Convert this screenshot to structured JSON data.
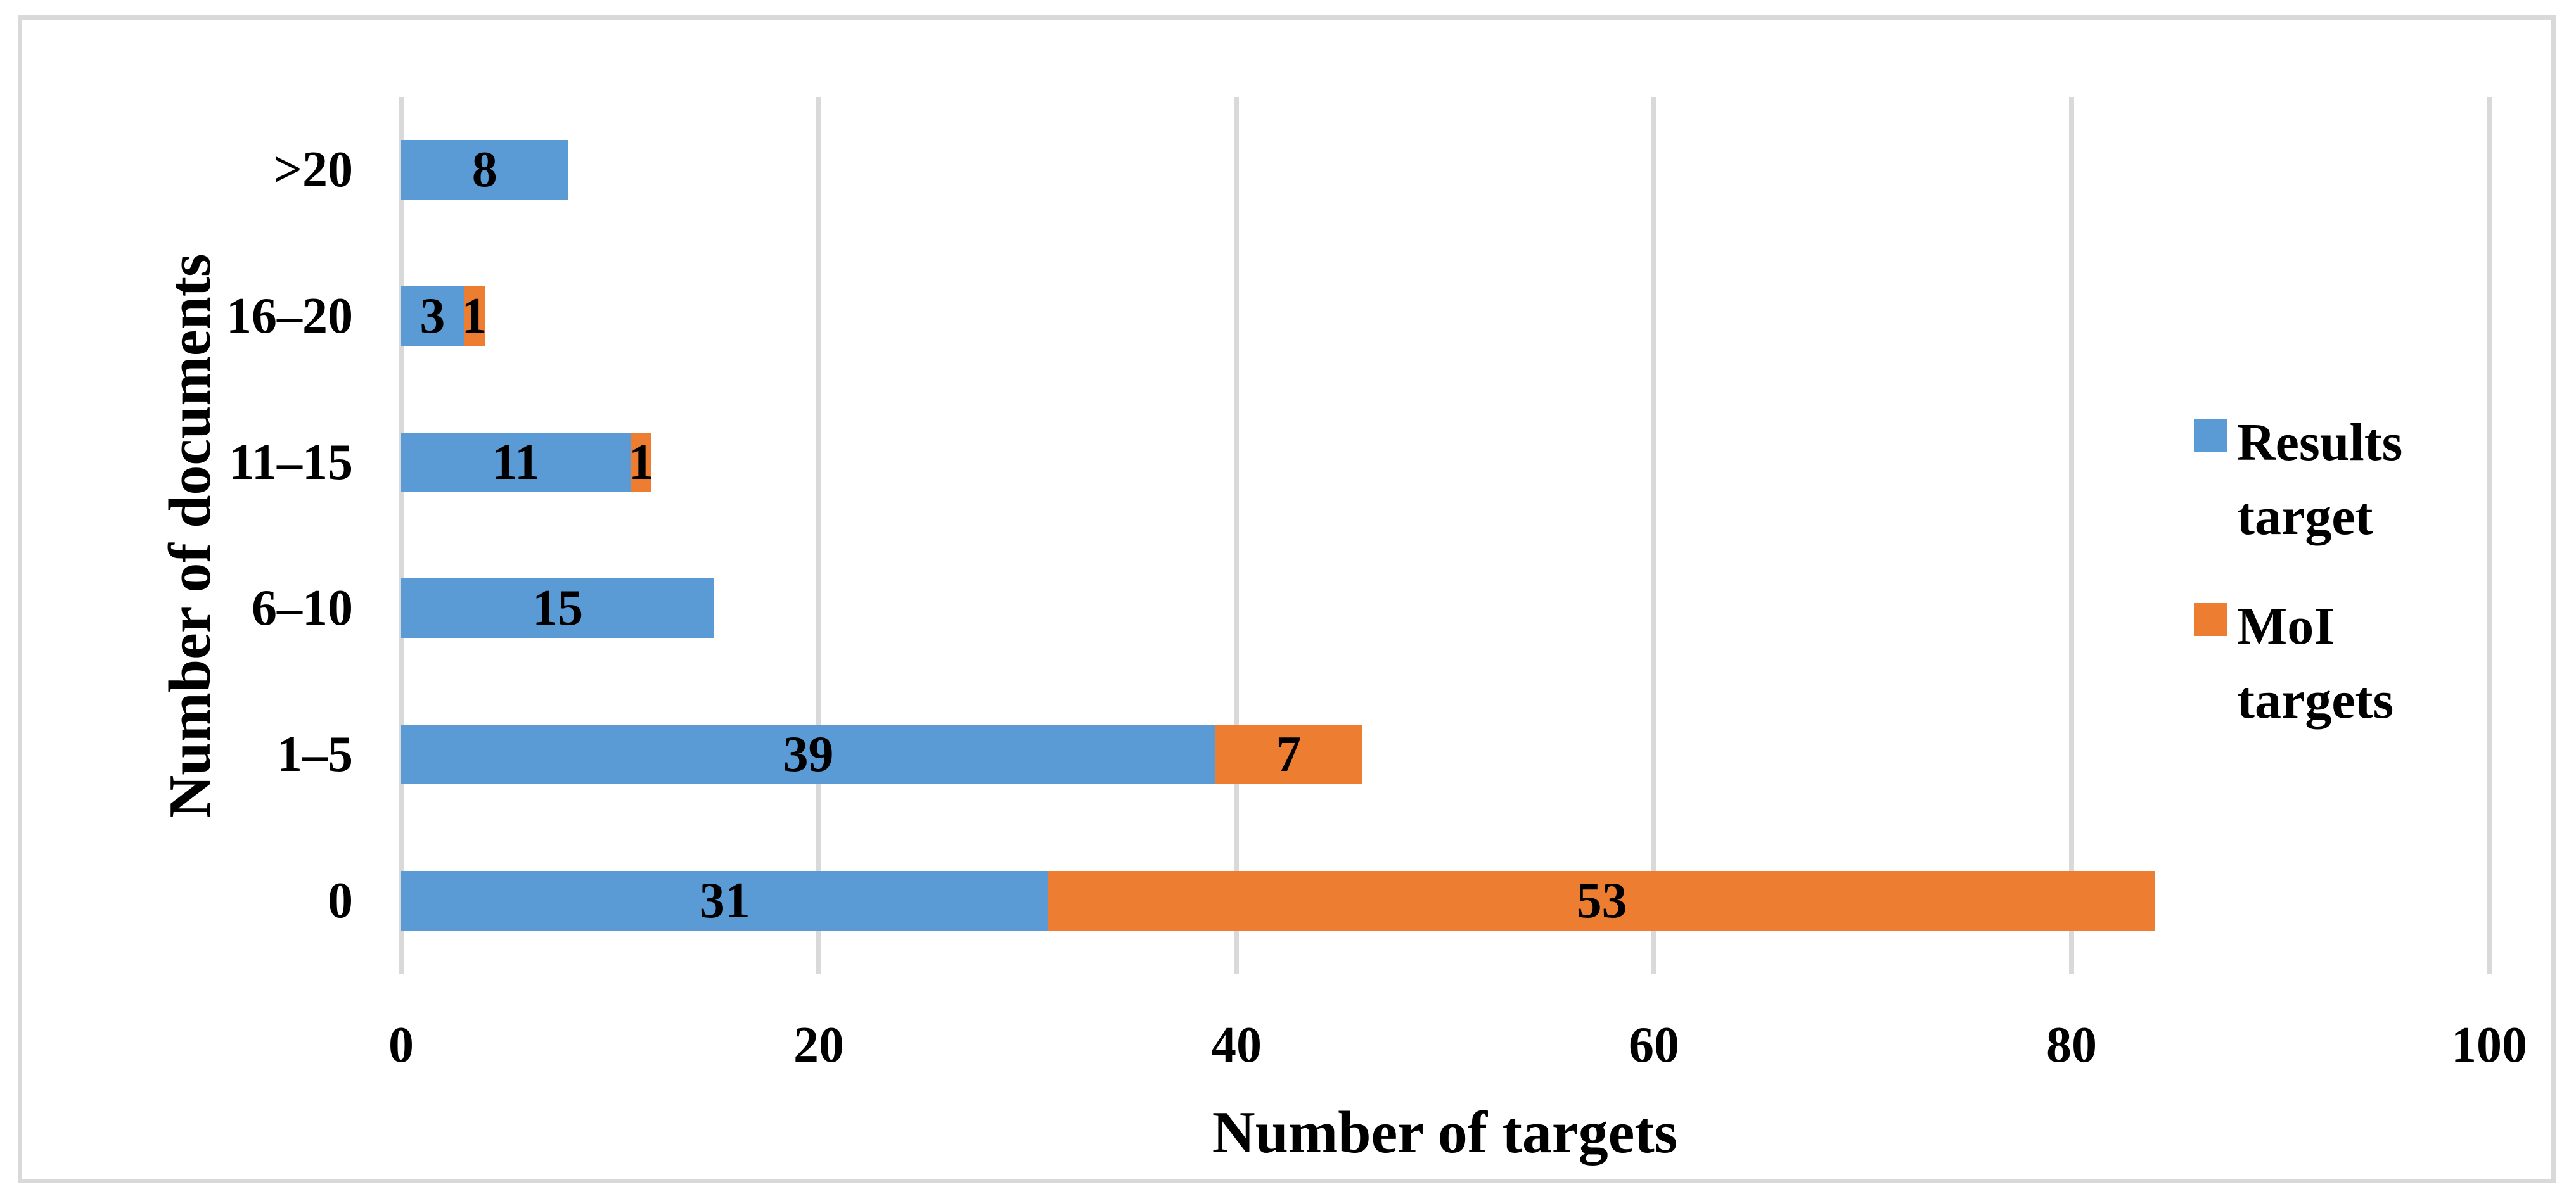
{
  "figure": {
    "background": "#ffffff",
    "border_color": "#d9d9d9",
    "gridline_color": "#d9d9d9"
  },
  "chart_data": {
    "type": "bar",
    "orientation": "horizontal",
    "stacked": true,
    "title": "",
    "xlabel": "Number of targets",
    "ylabel": "Number of documents",
    "xlim": [
      0,
      100
    ],
    "xticks": [
      0,
      20,
      40,
      60,
      80,
      100
    ],
    "grid": true,
    "legend_position": "right",
    "data_labels": true,
    "categories": [
      ">20",
      "16–20",
      "11–15",
      "6–10",
      "1–5",
      "0"
    ],
    "series": [
      {
        "name": "Results target",
        "color": "#5b9bd5",
        "values": [
          8,
          3,
          11,
          15,
          39,
          31
        ]
      },
      {
        "name": "MoI targets",
        "color": "#ed7d31",
        "values": [
          0,
          1,
          1,
          0,
          7,
          53
        ]
      }
    ]
  }
}
